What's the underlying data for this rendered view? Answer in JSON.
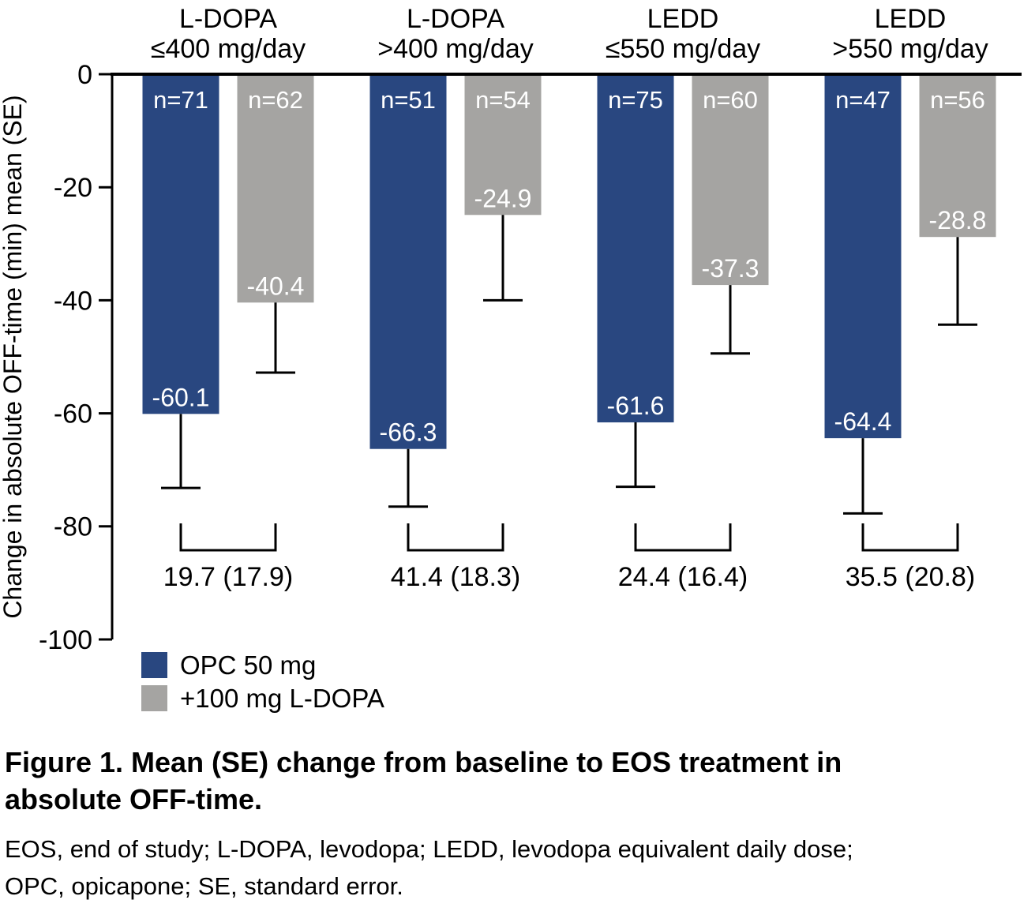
{
  "caption": {
    "title_lines": [
      "Figure 1. Mean (SE) change from baseline to EOS treatment in",
      "absolute OFF-time."
    ],
    "footnote_lines": [
      "EOS, end of study; L-DOPA, levodopa; LEDD, levodopa equivalent daily dose;",
      "OPC, opicapone; SE, standard error."
    ]
  },
  "chart_data": {
    "type": "bar",
    "title": "",
    "xlabel": "",
    "ylabel": "Change in absolute OFF-time (min) mean (SE)",
    "ylim": [
      -100,
      0
    ],
    "yticks": [
      0,
      -20,
      -40,
      -60,
      -80,
      -100
    ],
    "grid": false,
    "legend_position": "bottom-left",
    "series_names": [
      "OPC 50 mg",
      "+100 mg L-DOPA"
    ],
    "legend": [
      {
        "label": "OPC 50 mg",
        "color": "#294780"
      },
      {
        "label": "+100 mg L-DOPA",
        "color": "#A5A4A2"
      }
    ],
    "colors": {
      "bar_label_text": "#FFFFFF",
      "axis": "#000000"
    },
    "groups": [
      {
        "label_lines": [
          "L-DOPA",
          "≤400 mg/day"
        ],
        "bars": [
          {
            "series": "OPC 50 mg",
            "n": 71,
            "n_label": "n=71",
            "value": -60.1,
            "value_label": "-60.1",
            "error_tip": -73.2
          },
          {
            "series": "+100 mg L-DOPA",
            "n": 62,
            "n_label": "n=62",
            "value": -40.4,
            "value_label": "-40.4",
            "error_tip": -52.8
          }
        ],
        "difference": 19.7,
        "difference_se": 17.9,
        "difference_label": "19.7 (17.9)"
      },
      {
        "label_lines": [
          "L-DOPA",
          ">400 mg/day"
        ],
        "bars": [
          {
            "series": "OPC 50 mg",
            "n": 51,
            "n_label": "n=51",
            "value": -66.3,
            "value_label": "-66.3",
            "error_tip": -76.5
          },
          {
            "series": "+100 mg L-DOPA",
            "n": 54,
            "n_label": "n=54",
            "value": -24.9,
            "value_label": "-24.9",
            "error_tip": -40.0
          }
        ],
        "difference": 41.4,
        "difference_se": 18.3,
        "difference_label": "41.4 (18.3)"
      },
      {
        "label_lines": [
          "LEDD",
          "≤550 mg/day"
        ],
        "bars": [
          {
            "series": "OPC 50 mg",
            "n": 75,
            "n_label": "n=75",
            "value": -61.6,
            "value_label": "-61.6",
            "error_tip": -73.0
          },
          {
            "series": "+100 mg L-DOPA",
            "n": 60,
            "n_label": "n=60",
            "value": -37.3,
            "value_label": "-37.3",
            "error_tip": -49.4
          }
        ],
        "difference": 24.4,
        "difference_se": 16.4,
        "difference_label": "24.4 (16.4)"
      },
      {
        "label_lines": [
          "LEDD",
          ">550 mg/day"
        ],
        "bars": [
          {
            "series": "OPC 50 mg",
            "n": 47,
            "n_label": "n=47",
            "value": -64.4,
            "value_label": "-64.4",
            "error_tip": -77.7
          },
          {
            "series": "+100 mg L-DOPA",
            "n": 56,
            "n_label": "n=56",
            "value": -28.8,
            "value_label": "-28.8",
            "error_tip": -44.3
          }
        ],
        "difference": 35.5,
        "difference_se": 20.8,
        "difference_label": "35.5 (20.8)"
      }
    ]
  }
}
